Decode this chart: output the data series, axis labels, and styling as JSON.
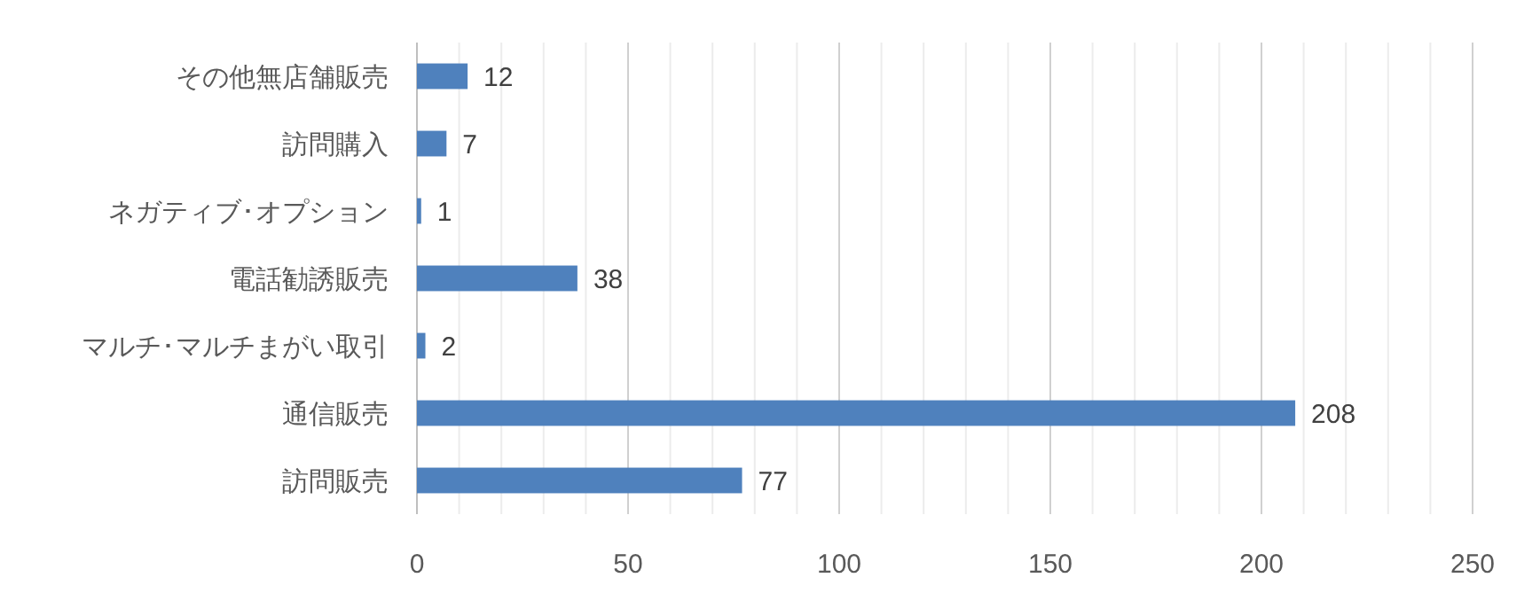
{
  "chart_data": {
    "type": "bar",
    "orientation": "horizontal",
    "categories": [
      "その他無店舗販売",
      "訪問購入",
      "ネガティブ･オプション",
      "電話勧誘販売",
      "マルチ･マルチまがい取引",
      "通信販売",
      "訪問販売"
    ],
    "values": [
      12,
      7,
      1,
      38,
      2,
      208,
      77
    ],
    "color": "#4f81bd",
    "data_labels": true,
    "xlim": [
      0,
      250
    ],
    "xticks": [
      0,
      {
        "value": 10,
        "label": null
      },
      {
        "value": 20,
        "label": null
      },
      {
        "value": 30,
        "label": null
      },
      {
        "value": 40,
        "label": null
      },
      50,
      {
        "value": 60,
        "label": null
      },
      {
        "value": 70,
        "label": null
      },
      {
        "value": 80,
        "label": null
      },
      {
        "value": 90,
        "label": null
      },
      100,
      {
        "value": 110,
        "label": null
      },
      {
        "value": 120,
        "label": null
      },
      {
        "value": 130,
        "label": null
      },
      {
        "value": 140,
        "label": null
      },
      150,
      {
        "value": 160,
        "label": null
      },
      {
        "value": 170,
        "label": null
      },
      {
        "value": 180,
        "label": null
      },
      {
        "value": 190,
        "label": null
      },
      200,
      {
        "value": 210,
        "label": null
      },
      {
        "value": 220,
        "label": null
      },
      {
        "value": 230,
        "label": null
      },
      {
        "value": 240,
        "label": null
      },
      250
    ],
    "grid": "x"
  }
}
